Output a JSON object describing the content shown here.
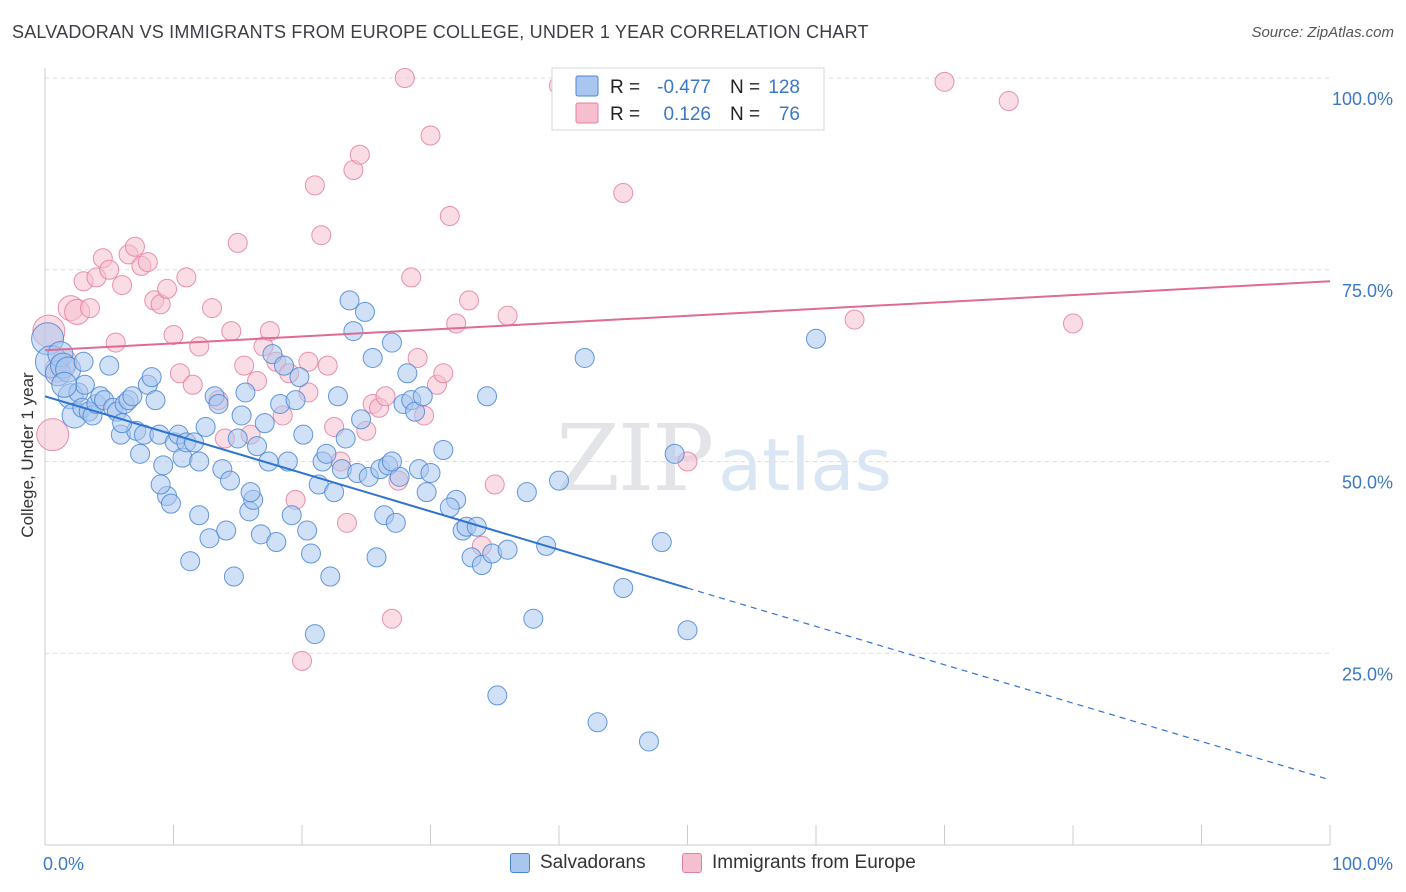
{
  "title": "SALVADORAN VS IMMIGRANTS FROM EUROPE COLLEGE, UNDER 1 YEAR CORRELATION CHART",
  "source": "Source: ZipAtlas.com",
  "watermark": {
    "part1": "ZIP",
    "part2": "atlas"
  },
  "colors": {
    "blue_fill": "#a9c6ee",
    "blue_stroke": "#4a86d6",
    "blue_line": "#2f73d2",
    "pink_fill": "#f5bfd0",
    "pink_stroke": "#e37fa1",
    "pink_line": "#e06a93",
    "tick_text": "#3b78c9",
    "grid": "#d9dde3"
  },
  "legend_top": {
    "rows": [
      {
        "r_label": "R =",
        "r_value": "-0.477",
        "n_label": "N =",
        "n_value": "128"
      },
      {
        "r_label": "R =",
        "r_value": "0.126",
        "n_label": "N =",
        "n_value": "76"
      }
    ]
  },
  "legend_bottom": {
    "items": [
      "Salvadorans",
      "Immigrants from Europe"
    ]
  },
  "chart_data": {
    "type": "scatter",
    "ylabel": "College, Under 1 year",
    "xlabel": "",
    "xlim": [
      0,
      100
    ],
    "ylim": [
      0,
      100
    ],
    "x_tick_labels": [
      {
        "value": 0,
        "label": "0.0%"
      },
      {
        "value": 100,
        "label": "100.0%"
      }
    ],
    "y_tick_labels": [
      {
        "value": 25,
        "label": "25.0%"
      },
      {
        "value": 50,
        "label": "50.0%"
      },
      {
        "value": 75,
        "label": "75.0%"
      },
      {
        "value": 100,
        "label": "100.0%"
      }
    ],
    "grid": "horizontal dashed",
    "series": [
      {
        "name": "Salvadorans",
        "r": -0.477,
        "n": 128,
        "trend": {
          "x0": 0,
          "y0": 58.5,
          "x1": 50,
          "y1": 33.5,
          "x_dashed_end": 100,
          "y_dashed_end": 8.5
        },
        "points": [
          [
            0.2,
            66
          ],
          [
            0.5,
            63
          ],
          [
            1,
            61.5
          ],
          [
            1.2,
            64
          ],
          [
            1.4,
            62.5
          ],
          [
            1.8,
            62
          ],
          [
            2,
            58.5
          ],
          [
            2.3,
            56
          ],
          [
            2.6,
            59
          ],
          [
            2.9,
            57
          ],
          [
            3.1,
            60
          ],
          [
            3.4,
            56.5
          ],
          [
            3.7,
            56
          ],
          [
            4,
            57.5
          ],
          [
            4.3,
            58.5
          ],
          [
            4.6,
            58
          ],
          [
            5,
            62.5
          ],
          [
            5.3,
            57
          ],
          [
            5.6,
            56.5
          ],
          [
            5.9,
            53.5
          ],
          [
            6.2,
            57.5
          ],
          [
            6.5,
            58
          ],
          [
            6.8,
            58.5
          ],
          [
            7.1,
            54
          ],
          [
            7.4,
            51
          ],
          [
            7.7,
            53.5
          ],
          [
            8,
            60
          ],
          [
            8.3,
            61
          ],
          [
            8.6,
            58
          ],
          [
            8.9,
            53.5
          ],
          [
            9.2,
            49.5
          ],
          [
            9.5,
            45.5
          ],
          [
            9.8,
            44.5
          ],
          [
            10.1,
            52.5
          ],
          [
            10.4,
            53.5
          ],
          [
            10.7,
            50.5
          ],
          [
            11,
            52.5
          ],
          [
            11.3,
            37
          ],
          [
            11.6,
            52.5
          ],
          [
            12,
            43
          ],
          [
            12.5,
            54.5
          ],
          [
            12.8,
            40
          ],
          [
            13.2,
            58.5
          ],
          [
            13.5,
            57.5
          ],
          [
            13.8,
            49
          ],
          [
            14.1,
            41
          ],
          [
            14.4,
            47.5
          ],
          [
            14.7,
            35
          ],
          [
            15,
            53
          ],
          [
            15.3,
            56
          ],
          [
            15.6,
            59
          ],
          [
            15.9,
            43.5
          ],
          [
            16.2,
            45
          ],
          [
            16.5,
            52
          ],
          [
            16.8,
            40.5
          ],
          [
            17.1,
            55
          ],
          [
            17.4,
            50
          ],
          [
            17.7,
            64
          ],
          [
            18,
            39.5
          ],
          [
            18.3,
            57.5
          ],
          [
            18.6,
            62.5
          ],
          [
            18.9,
            50
          ],
          [
            19.2,
            43
          ],
          [
            19.5,
            58
          ],
          [
            19.8,
            61
          ],
          [
            20.1,
            53.5
          ],
          [
            20.4,
            41
          ],
          [
            20.7,
            38
          ],
          [
            21,
            27.5
          ],
          [
            21.3,
            47
          ],
          [
            21.6,
            50
          ],
          [
            21.9,
            51
          ],
          [
            22.2,
            35
          ],
          [
            22.5,
            46
          ],
          [
            22.8,
            58.5
          ],
          [
            23.1,
            49
          ],
          [
            23.4,
            53
          ],
          [
            23.7,
            71
          ],
          [
            24,
            67
          ],
          [
            24.3,
            48.5
          ],
          [
            24.6,
            55.5
          ],
          [
            24.9,
            69.5
          ],
          [
            25.2,
            48
          ],
          [
            25.5,
            63.5
          ],
          [
            25.8,
            37.5
          ],
          [
            26.1,
            49
          ],
          [
            26.4,
            43
          ],
          [
            26.7,
            49.5
          ],
          [
            27,
            65.5
          ],
          [
            27.3,
            42
          ],
          [
            27.6,
            48
          ],
          [
            27.9,
            57.5
          ],
          [
            28.2,
            61.5
          ],
          [
            28.5,
            58
          ],
          [
            28.8,
            56.5
          ],
          [
            29.1,
            49
          ],
          [
            29.4,
            58.5
          ],
          [
            29.7,
            46
          ],
          [
            30,
            48.5
          ],
          [
            31,
            51.5
          ],
          [
            32,
            45
          ],
          [
            32.5,
            41
          ],
          [
            32.8,
            41.5
          ],
          [
            33.2,
            37.5
          ],
          [
            33.6,
            41.5
          ],
          [
            34,
            36.5
          ],
          [
            34.4,
            58.5
          ],
          [
            34.8,
            38
          ],
          [
            35.2,
            19.5
          ],
          [
            36,
            38.5
          ],
          [
            37.5,
            46
          ],
          [
            38,
            29.5
          ],
          [
            39,
            39
          ],
          [
            40,
            47.5
          ],
          [
            42,
            63.5
          ],
          [
            43,
            16
          ],
          [
            45,
            33.5
          ],
          [
            47,
            13.5
          ],
          [
            48,
            39.5
          ],
          [
            49,
            51
          ],
          [
            50,
            28
          ],
          [
            60,
            66
          ],
          [
            1.5,
            60
          ],
          [
            3,
            63
          ],
          [
            6,
            55
          ],
          [
            9,
            47
          ],
          [
            12,
            50
          ],
          [
            16,
            46
          ],
          [
            27,
            50
          ],
          [
            31.5,
            44
          ]
        ]
      },
      {
        "name": "Immigrants from Europe",
        "r": 0.126,
        "n": 76,
        "trend": {
          "x0": 0,
          "y0": 64.5,
          "x1": 100,
          "y1": 73.5
        },
        "points": [
          [
            0.3,
            67
          ],
          [
            0.6,
            53.5
          ],
          [
            1,
            62
          ],
          [
            1.5,
            63
          ],
          [
            2,
            70
          ],
          [
            2.5,
            69.5
          ],
          [
            3,
            73.5
          ],
          [
            3.5,
            70
          ],
          [
            4,
            74
          ],
          [
            4.5,
            76.5
          ],
          [
            5,
            75
          ],
          [
            5.5,
            65.5
          ],
          [
            6,
            73
          ],
          [
            6.5,
            77
          ],
          [
            7,
            78
          ],
          [
            7.5,
            75.5
          ],
          [
            8,
            76
          ],
          [
            8.5,
            71
          ],
          [
            9,
            70.5
          ],
          [
            9.5,
            72.5
          ],
          [
            10,
            66.5
          ],
          [
            10.5,
            61.5
          ],
          [
            11,
            74
          ],
          [
            11.5,
            60
          ],
          [
            12,
            65
          ],
          [
            13,
            70
          ],
          [
            13.5,
            58
          ],
          [
            14,
            53
          ],
          [
            14.5,
            67
          ],
          [
            15,
            78.5
          ],
          [
            15.5,
            62.5
          ],
          [
            16,
            53.5
          ],
          [
            16.5,
            60.5
          ],
          [
            17,
            65
          ],
          [
            17.5,
            67
          ],
          [
            18,
            63
          ],
          [
            18.5,
            56
          ],
          [
            19,
            61.5
          ],
          [
            19.5,
            45
          ],
          [
            20,
            24
          ],
          [
            20.5,
            59
          ],
          [
            21,
            86
          ],
          [
            21.5,
            79.5
          ],
          [
            22,
            62.5
          ],
          [
            22.5,
            54.5
          ],
          [
            23,
            50
          ],
          [
            23.5,
            42
          ],
          [
            24,
            88
          ],
          [
            24.5,
            90
          ],
          [
            25,
            54
          ],
          [
            25.5,
            57.5
          ],
          [
            26,
            57
          ],
          [
            26.5,
            58.5
          ],
          [
            27,
            29.5
          ],
          [
            27.5,
            47.5
          ],
          [
            28,
            100
          ],
          [
            28.5,
            74
          ],
          [
            29,
            63.5
          ],
          [
            29.5,
            56
          ],
          [
            30,
            92.5
          ],
          [
            30.5,
            60
          ],
          [
            31,
            61.5
          ],
          [
            31.5,
            82
          ],
          [
            32,
            68
          ],
          [
            33,
            71
          ],
          [
            34,
            39
          ],
          [
            35,
            47
          ],
          [
            36,
            69
          ],
          [
            40,
            99
          ],
          [
            45,
            85
          ],
          [
            50,
            50
          ],
          [
            63,
            68.5
          ],
          [
            70,
            99.5
          ],
          [
            75,
            97
          ],
          [
            80,
            68
          ],
          [
            20.5,
            63
          ]
        ]
      }
    ]
  }
}
